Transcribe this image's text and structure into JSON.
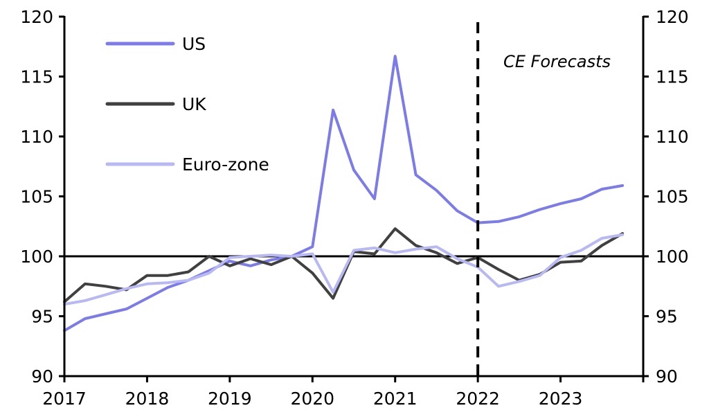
{
  "chart_data": {
    "type": "line",
    "title": "",
    "xlabel": "",
    "ylabel": "",
    "x": [
      "2017Q1",
      "2017Q2",
      "2017Q3",
      "2017Q4",
      "2018Q1",
      "2018Q2",
      "2018Q3",
      "2018Q4",
      "2019Q1",
      "2019Q2",
      "2019Q3",
      "2019Q4",
      "2020Q1",
      "2020Q2",
      "2020Q3",
      "2020Q4",
      "2021Q1",
      "2021Q2",
      "2021Q3",
      "2021Q4",
      "2022Q1",
      "2022Q2",
      "2022Q3",
      "2022Q4",
      "2023Q1",
      "2023Q2",
      "2023Q3",
      "2023Q4"
    ],
    "ylim": [
      90,
      120
    ],
    "yticks": [
      90,
      95,
      100,
      105,
      110,
      115,
      120
    ],
    "xtick_labels": [
      "2017",
      "2018",
      "2019",
      "2020",
      "2021",
      "2022",
      "2023"
    ],
    "reference_line": 100,
    "forecast_start": "2022Q1",
    "annotation": "CE Forecasts",
    "secondary_axis": true,
    "legend_position": "top-left",
    "series": [
      {
        "name": "US",
        "color": "#7b7bec",
        "values": [
          93.8,
          94.8,
          95.2,
          95.6,
          96.5,
          97.4,
          98.0,
          98.8,
          99.6,
          99.2,
          99.7,
          100.0,
          100.8,
          112.2,
          107.2,
          104.8,
          116.7,
          106.8,
          105.5,
          103.8,
          102.8,
          102.9,
          103.3,
          103.9,
          104.4,
          104.8,
          105.6,
          105.9
        ]
      },
      {
        "name": "UK",
        "color": "#404040",
        "values": [
          96.2,
          97.7,
          97.5,
          97.2,
          98.4,
          98.4,
          98.7,
          100.0,
          99.2,
          99.8,
          99.3,
          100.0,
          98.6,
          96.5,
          100.4,
          100.2,
          102.3,
          100.9,
          100.3,
          99.4,
          99.9,
          98.9,
          98.0,
          98.5,
          99.5,
          99.6,
          100.9,
          101.9
        ]
      },
      {
        "name": "Euro-zone",
        "color": "#b8b8f4",
        "values": [
          96.0,
          96.3,
          96.8,
          97.3,
          97.7,
          97.8,
          98.0,
          98.6,
          99.9,
          100.0,
          100.1,
          100.0,
          100.2,
          97.0,
          100.5,
          100.7,
          100.3,
          100.6,
          100.8,
          99.8,
          99.1,
          97.5,
          97.9,
          98.4,
          99.9,
          100.5,
          101.5,
          101.8
        ]
      }
    ]
  }
}
